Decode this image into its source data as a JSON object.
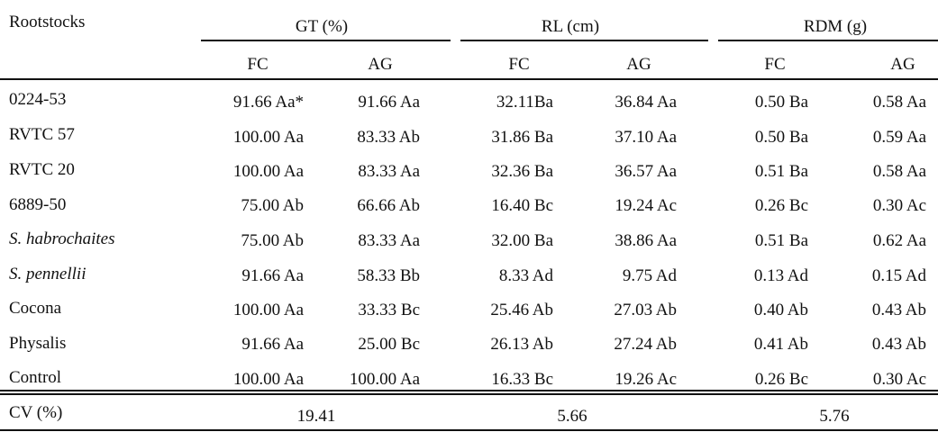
{
  "table": {
    "row_header_label": "Rootstocks",
    "groups": [
      {
        "label": "GT (%)"
      },
      {
        "label": "RL (cm)"
      },
      {
        "label": "RDM (g)"
      }
    ],
    "subheaders": [
      "FC",
      "AG",
      "FC",
      "AG",
      "FC",
      "AG"
    ],
    "rows": [
      {
        "name": "0224-53",
        "italic": false,
        "cells": [
          "91.66 Aa*",
          "91.66 Aa",
          "32.11Ba",
          "36.84 Aa",
          "0.50 Ba",
          "0.58 Aa"
        ]
      },
      {
        "name": "RVTC 57",
        "italic": false,
        "cells": [
          "100.00 Aa",
          "83.33 Ab",
          "31.86 Ba",
          "37.10 Aa",
          "0.50 Ba",
          "0.59 Aa"
        ]
      },
      {
        "name": "RVTC 20",
        "italic": false,
        "cells": [
          "100.00 Aa",
          "83.33 Aa",
          "32.36 Ba",
          "36.57 Aa",
          "0.51 Ba",
          "0.58 Aa"
        ]
      },
      {
        "name": "6889-50",
        "italic": false,
        "cells": [
          "75.00 Ab",
          "66.66 Ab",
          "16.40 Bc",
          "19.24 Ac",
          "0.26 Bc",
          "0.30 Ac"
        ]
      },
      {
        "name": "S. habrochaites",
        "italic": true,
        "cells": [
          "75.00 Ab",
          "83.33 Aa",
          "32.00 Ba",
          "38.86 Aa",
          "0.51 Ba",
          "0.62 Aa"
        ]
      },
      {
        "name": "S. pennellii",
        "italic": true,
        "cells": [
          "91.66 Aa",
          "58.33 Bb",
          "8.33 Ad",
          "9.75 Ad",
          "0.13 Ad",
          "0.15 Ad"
        ]
      },
      {
        "name": "Cocona",
        "italic": false,
        "cells": [
          "100.00 Aa",
          "33.33 Bc",
          "25.46 Ab",
          "27.03 Ab",
          "0.40 Ab",
          "0.43 Ab"
        ]
      },
      {
        "name": "Physalis",
        "italic": false,
        "cells": [
          "91.66 Aa",
          "25.00 Bc",
          "26.13 Ab",
          "27.24 Ab",
          "0.41 Ab",
          "0.43 Ab"
        ]
      },
      {
        "name": "Control",
        "italic": false,
        "cells": [
          "100.00 Aa",
          "100.00 Aa",
          "16.33 Bc",
          "19.26 Ac",
          "0.26 Bc",
          "0.30 Ac"
        ]
      }
    ],
    "cv": {
      "label": "CV (%)",
      "values": [
        "19.41",
        "5.66",
        "5.76"
      ]
    }
  }
}
